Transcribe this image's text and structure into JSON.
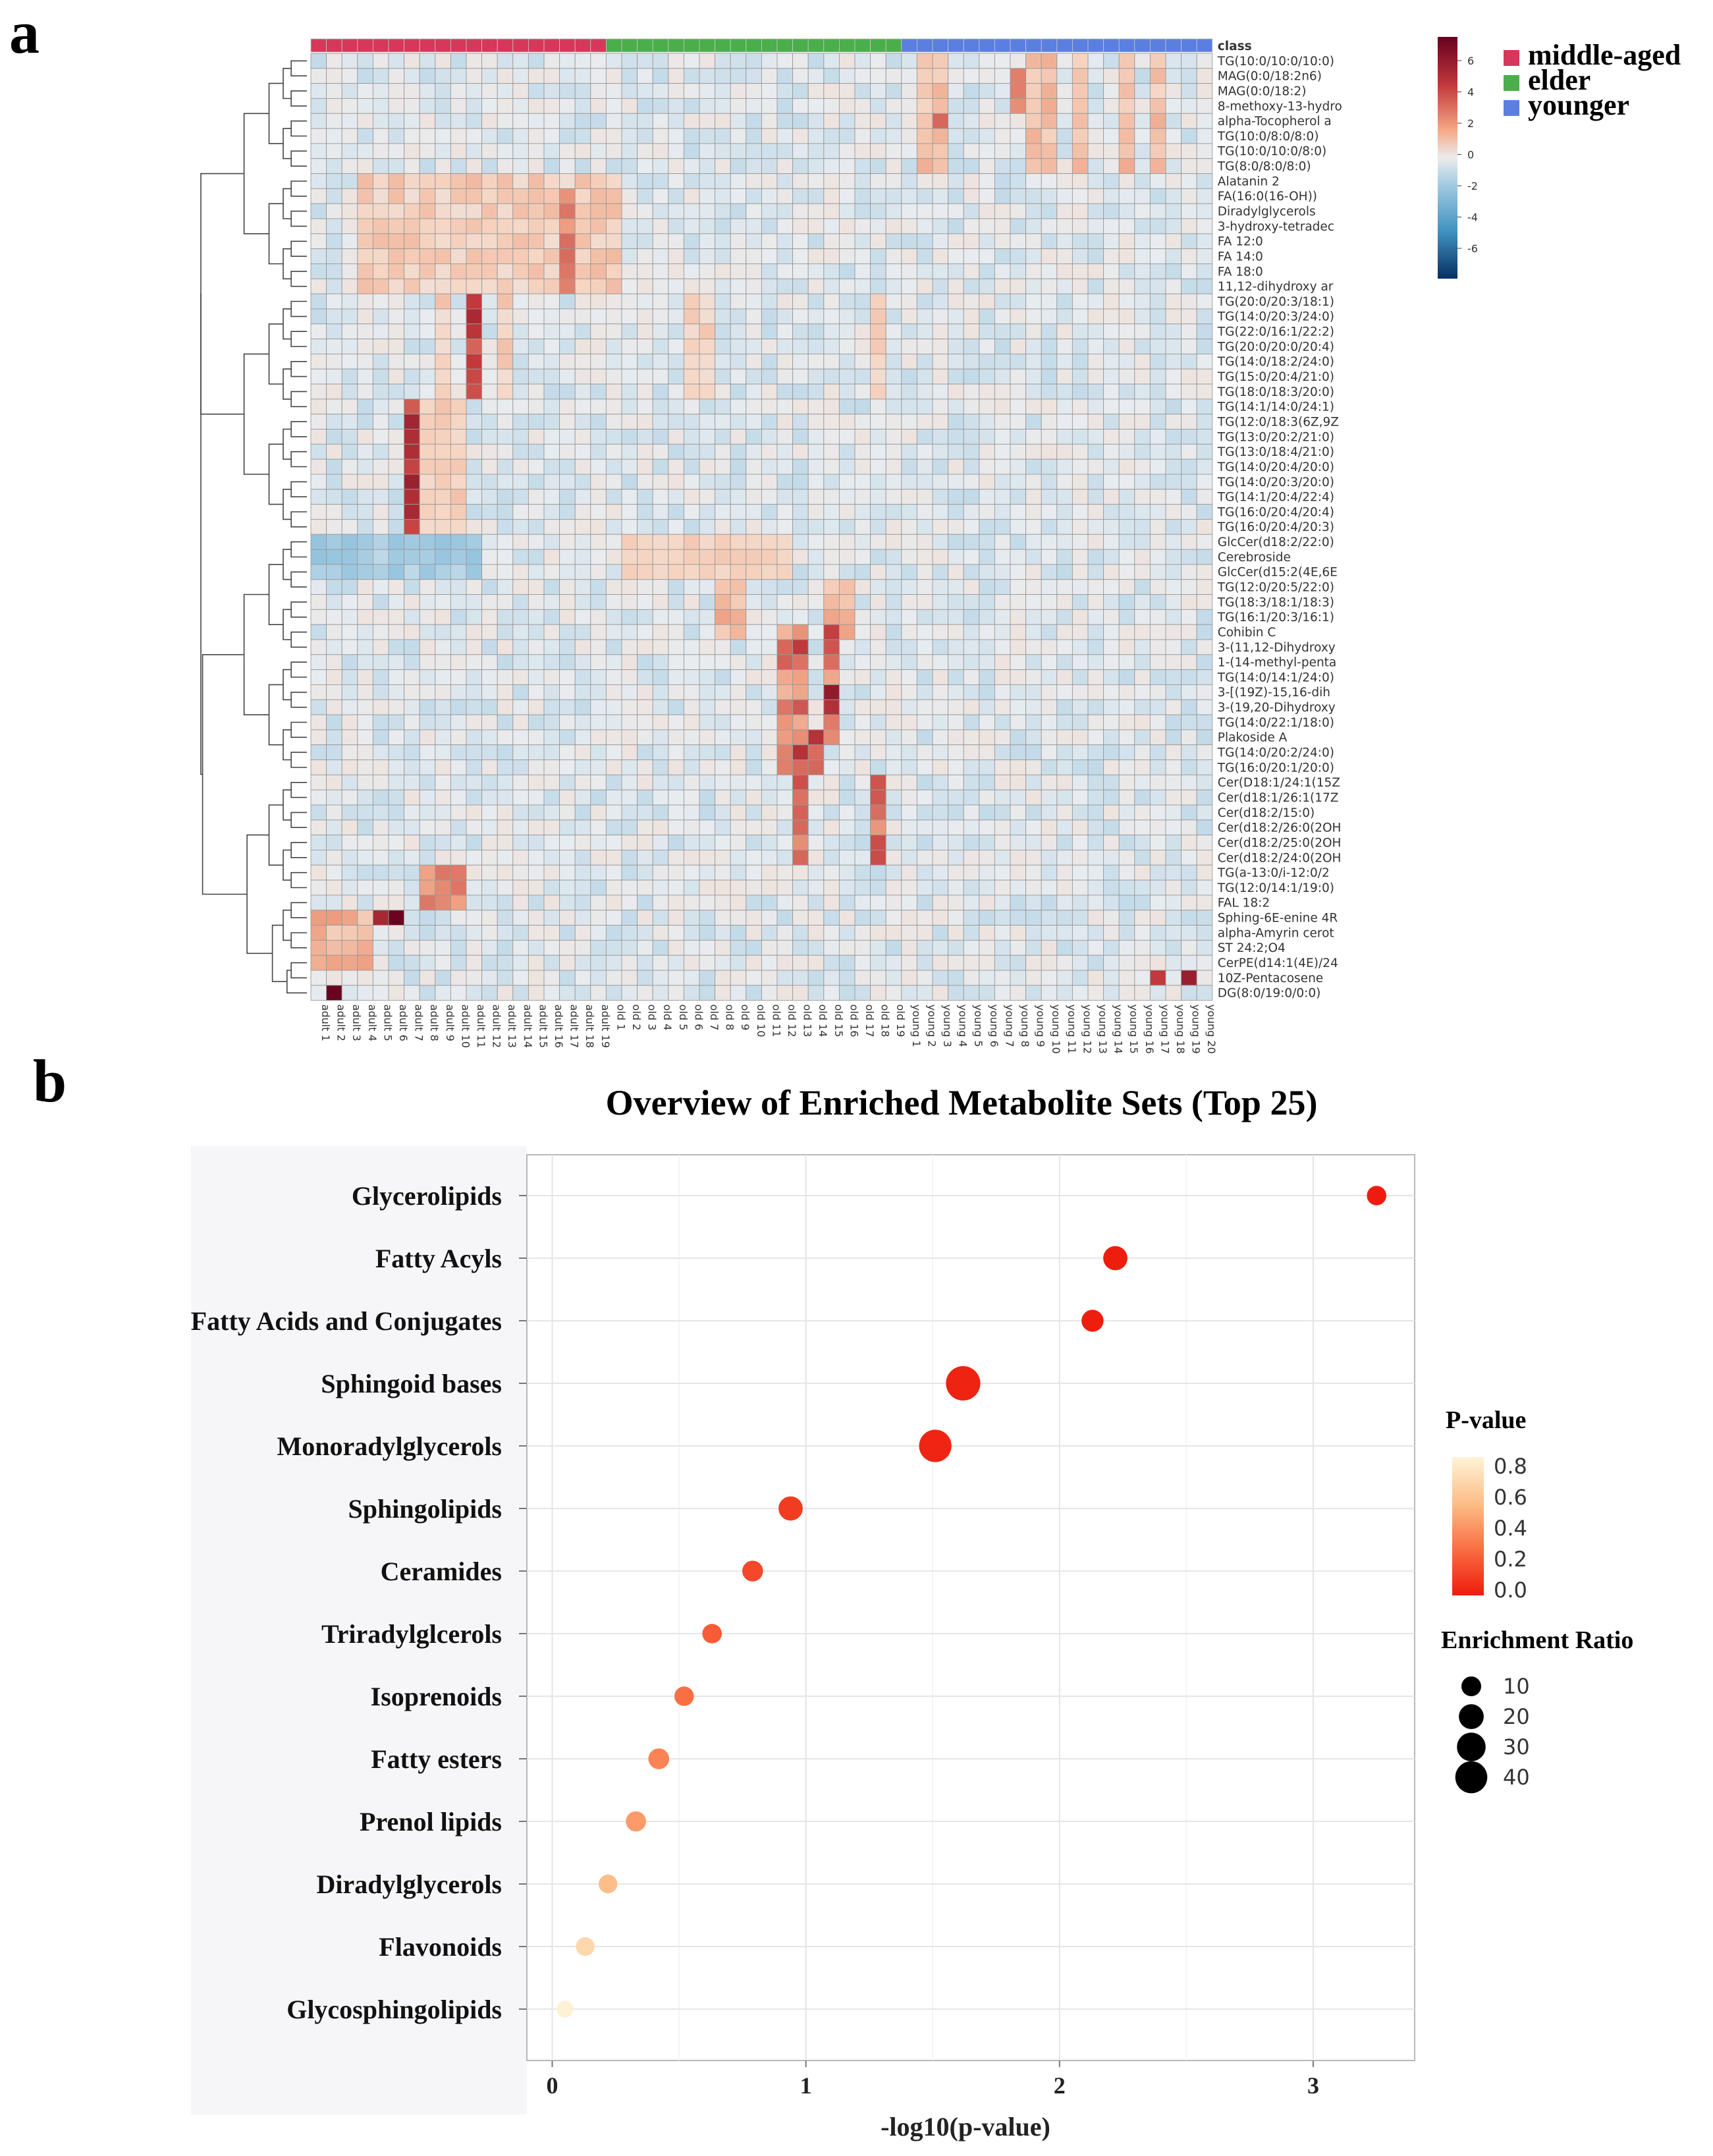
{
  "panel_labels": {
    "a": "a",
    "b": "b"
  },
  "colors": {
    "middle_aged": "#d6375a",
    "elder": "#4aae4a",
    "younger": "#5b7fe0",
    "heat_low": "#2166ac",
    "heat_mid": "#e8ecf0",
    "heat_high": "#8b0a1e"
  },
  "chart_data": [
    {
      "type": "heatmap",
      "class_header": "class",
      "class_legend": [
        {
          "label": "middle-aged",
          "color": "#d6375a"
        },
        {
          "label": "elder",
          "color": "#4aae4a"
        },
        {
          "label": "younger",
          "color": "#5b7fe0"
        }
      ],
      "color_scale": {
        "min": -6,
        "max": 6,
        "ticks": [
          "6",
          "4",
          "2",
          "0",
          "-2",
          "-4",
          "-6"
        ]
      },
      "columns": [
        "adult 1",
        "adult 2",
        "adult 3",
        "adult 4",
        "adult 5",
        "adult 6",
        "adult 7",
        "adult 8",
        "adult 9",
        "adult 10",
        "adult 11",
        "adult 12",
        "adult 13",
        "adult 14",
        "adult 15",
        "adult 16",
        "adult 17",
        "adult 18",
        "adult 19",
        "old 1",
        "old 2",
        "old 3",
        "old 4",
        "old 5",
        "old 6",
        "old 7",
        "old 8",
        "old 9",
        "old 10",
        "old 11",
        "old 12",
        "old 13",
        "old 14",
        "old 15",
        "old 16",
        "old 17",
        "old 18",
        "old 19",
        "young 1",
        "young 2",
        "young 3",
        "young 4",
        "young 5",
        "young 6",
        "young 7",
        "young 8",
        "young 9",
        "young 10",
        "young 11",
        "young 12",
        "young 13",
        "young 14",
        "young 15",
        "young 16",
        "young 17",
        "young 18",
        "young 19",
        "young 20"
      ],
      "column_classes": [
        "middle-aged",
        "middle-aged",
        "middle-aged",
        "middle-aged",
        "middle-aged",
        "middle-aged",
        "middle-aged",
        "middle-aged",
        "middle-aged",
        "middle-aged",
        "middle-aged",
        "middle-aged",
        "middle-aged",
        "middle-aged",
        "middle-aged",
        "middle-aged",
        "middle-aged",
        "middle-aged",
        "middle-aged",
        "elder",
        "elder",
        "elder",
        "elder",
        "elder",
        "elder",
        "elder",
        "elder",
        "elder",
        "elder",
        "elder",
        "elder",
        "elder",
        "elder",
        "elder",
        "elder",
        "elder",
        "elder",
        "elder",
        "younger",
        "younger",
        "younger",
        "younger",
        "younger",
        "younger",
        "younger",
        "younger",
        "younger",
        "younger",
        "younger",
        "younger",
        "younger",
        "younger",
        "younger",
        "younger",
        "younger",
        "younger",
        "younger",
        "younger"
      ],
      "rows": [
        "TG(10:0/10:0/10:0)",
        "MAG(0:0/18:2n6)",
        "MAG(0:0/18:2)",
        "8-methoxy-13-hydro",
        "alpha-Tocopherol a",
        "TG(10:0/8:0/8:0)",
        "TG(10:0/10:0/8:0)",
        "TG(8:0/8:0/8:0)",
        "Alatanin 2",
        "FA(16:0(16-OH))",
        "Diradylglycerols",
        "3-hydroxy-tetradec",
        "FA 12:0",
        "FA 14:0",
        "FA 18:0",
        "11,12-dihydroxy ar",
        "TG(20:0/20:3/18:1)",
        "TG(14:0/20:3/24:0)",
        "TG(22:0/16:1/22:2)",
        "TG(20:0/20:0/20:4)",
        "TG(14:0/18:2/24:0)",
        "TG(15:0/20:4/21:0)",
        "TG(18:0/18:3/20:0)",
        "TG(14:1/14:0/24:1)",
        "TG(12:0/18:3(6Z,9Z",
        "TG(13:0/20:2/21:0)",
        "TG(13:0/18:4/21:0)",
        "TG(14:0/20:4/20:0)",
        "TG(14:0/20:3/20:0)",
        "TG(14:1/20:4/22:4)",
        "TG(16:0/20:4/20:4)",
        "TG(16:0/20:4/20:3)",
        "GlcCer(d18:2/22:0)",
        "Cerebroside",
        "GlcCer(d15:2(4E,6E",
        "TG(12:0/20:5/22:0)",
        "TG(18:3/18:1/18:3)",
        "TG(16:1/20:3/16:1)",
        "Cohibin C",
        "3-(11,12-Dihydroxy",
        "1-(14-methyl-penta",
        "TG(14:0/14:1/24:0)",
        "3-[(19Z)-15,16-dih",
        "3-(19,20-Dihydroxy",
        "TG(14:0/22:1/18:0)",
        "Plakoside A",
        "TG(14:0/20:2/24:0)",
        "TG(16:0/20:1/20:0)",
        "Cer(D18:1/24:1(15Z",
        "Cer(d18:1/26:1(17Z",
        "Cer(d18:2/15:0)",
        "Cer(d18:2/26:0(2OH",
        "Cer(d18:2/25:0(2OH",
        "Cer(d18:2/24:0(2OH",
        "TG(a-13:0/i-12:0/2",
        "TG(12:0/14:1/19:0)",
        "FAL 18:2",
        "Sphing-6E-enine 4R",
        "alpha-Amyrin cerot",
        "ST 24:2;O4",
        "CerPE(d14:1(4E)/24",
        "10Z-Pentacosene",
        "DG(8:0/19:0/0:0)"
      ]
    },
    {
      "type": "scatter",
      "title": "Overview of Enriched Metabolite Sets (Top 25)",
      "xlabel": "-log10(p-value)",
      "xlim": [
        -0.1,
        3.4
      ],
      "xticks": [
        "0",
        "1",
        "2",
        "3"
      ],
      "categories": [
        "Glycerolipids",
        "Fatty Acyls",
        "Fatty Acids and Conjugates",
        "Sphingoid bases",
        "Monoradylglycerols",
        "Sphingolipids",
        "Ceramides",
        "Triradylglcerols",
        "Isoprenoids",
        "Fatty esters",
        "Prenol lipids",
        "Diradylglycerols",
        "Flavonoids",
        "Glycosphingolipids"
      ],
      "x": [
        3.25,
        2.22,
        2.13,
        1.62,
        1.51,
        0.94,
        0.79,
        0.63,
        0.52,
        0.42,
        0.33,
        0.22,
        0.13,
        0.05
      ],
      "p_value": [
        0.001,
        0.006,
        0.007,
        0.024,
        0.031,
        0.115,
        0.162,
        0.234,
        0.302,
        0.38,
        0.468,
        0.603,
        0.741,
        0.89
      ],
      "enrichment_ratio": [
        8,
        16,
        12,
        42,
        36,
        16,
        10,
        8,
        8,
        10,
        9,
        7,
        7,
        5
      ],
      "legend": {
        "p_title": "P-value",
        "p_ticks": [
          "0.8",
          "0.6",
          "0.4",
          "0.2",
          "0.0"
        ],
        "size_title": "Enrichment Ratio",
        "size_ticks": [
          "10",
          "20",
          "30",
          "40"
        ]
      }
    }
  ]
}
